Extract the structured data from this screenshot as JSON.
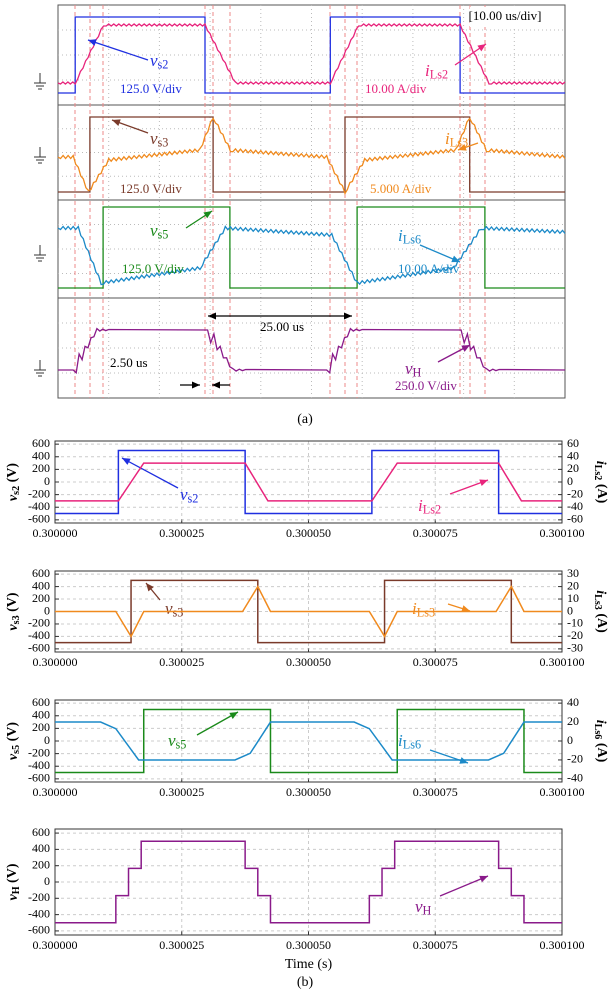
{
  "scope": {
    "labels": [
      "[10.00 us/div]",
      "vs2",
      "125.0 V/div",
      "iLs2",
      "10.00 A/div",
      "vs3",
      "iLs3",
      "125.0 V/div",
      "5.000 A/div",
      "vs5",
      "iLs6",
      "125.0 V/div",
      "10.00 A/div",
      "25.00 us",
      "2.50 us",
      "vH",
      "250.0 V/div"
    ]
  },
  "captions": [
    "(a)",
    "(b)"
  ],
  "chart_data": [
    {
      "type": "line",
      "ylabel": "vs2 (V)",
      "y2label": "iLs2 (A)",
      "grid": true,
      "xlim": [
        0.3,
        0.3001
      ],
      "xticks": [
        {
          "value": 0.3,
          "label": "0.300000"
        },
        {
          "value": 0.300025,
          "label": "0.300025"
        },
        {
          "value": 0.30005,
          "label": "0.300050"
        },
        {
          "value": 0.300075,
          "label": "0.300075"
        },
        {
          "value": 0.3001,
          "label": "0.300100"
        }
      ],
      "ylim": [
        -650,
        650
      ],
      "yticks": [
        -600,
        -400,
        -200,
        0,
        200,
        400,
        600
      ],
      "y2lim": [
        -65,
        65
      ],
      "y2ticks": [
        -60,
        -40,
        -20,
        0,
        20,
        40,
        60
      ],
      "series": [
        {
          "name": "vs2",
          "color": "#1f2fe0",
          "x": [
            0.3,
            0.3000125,
            0.3000125,
            0.3000375,
            0.3000375,
            0.3000625,
            0.3000625,
            0.3000875,
            0.3000875,
            0.3001
          ],
          "values": [
            -500,
            -500,
            500,
            500,
            -500,
            -500,
            500,
            500,
            -500,
            -500
          ]
        },
        {
          "name": "iLs2",
          "color": "#e8247c",
          "axis": "y2",
          "x": [
            0.3,
            0.3000125,
            0.3000175,
            0.3000375,
            0.300042,
            0.3000625,
            0.3000675,
            0.3000875,
            0.300092,
            0.3001
          ],
          "values": [
            -30,
            -30,
            30,
            30,
            -30,
            -30,
            30,
            30,
            -30,
            -30
          ]
        }
      ]
    },
    {
      "type": "line",
      "ylabel": "vs3 (V)",
      "y2label": "iLs3 (A)",
      "grid": true,
      "xlim": [
        0.3,
        0.3001
      ],
      "xticks": [
        {
          "value": 0.3,
          "label": "0.300000"
        },
        {
          "value": 0.300025,
          "label": "0.300025"
        },
        {
          "value": 0.30005,
          "label": "0.300050"
        },
        {
          "value": 0.300075,
          "label": "0.300075"
        },
        {
          "value": 0.3001,
          "label": "0.300100"
        }
      ],
      "ylim": [
        -650,
        650
      ],
      "yticks": [
        -600,
        -400,
        -200,
        0,
        200,
        400,
        600
      ],
      "y2lim": [
        -32.5,
        32.5
      ],
      "y2ticks": [
        -30,
        -20,
        -10,
        0,
        10,
        20,
        30
      ],
      "series": [
        {
          "name": "vs3",
          "color": "#7a3a2a",
          "x": [
            0.3,
            0.300015,
            0.300015,
            0.30004,
            0.30004,
            0.300065,
            0.300065,
            0.30009,
            0.30009,
            0.3001
          ],
          "values": [
            -500,
            -500,
            500,
            500,
            -500,
            -500,
            500,
            500,
            -500,
            -500
          ]
        },
        {
          "name": "iLs3",
          "color": "#f08a1e",
          "axis": "y2",
          "x": [
            0.3,
            0.300012,
            0.300015,
            0.3000175,
            0.300037,
            0.30004,
            0.3000425,
            0.300062,
            0.300065,
            0.3000675,
            0.300087,
            0.30009,
            0.3000925,
            0.3001
          ],
          "values": [
            0,
            0,
            -20,
            0,
            0,
            20,
            0,
            0,
            -20,
            0,
            0,
            20,
            0,
            0
          ]
        }
      ]
    },
    {
      "type": "line",
      "ylabel": "vs5 (V)",
      "y2label": "iLs6 (A)",
      "grid": true,
      "xlim": [
        0.3,
        0.3001
      ],
      "xticks": [
        {
          "value": 0.3,
          "label": "0.300000"
        },
        {
          "value": 0.300025,
          "label": "0.300025"
        },
        {
          "value": 0.30005,
          "label": "0.300050"
        },
        {
          "value": 0.300075,
          "label": "0.300075"
        },
        {
          "value": 0.3001,
          "label": "0.300100"
        }
      ],
      "ylim": [
        -650,
        650
      ],
      "yticks": [
        -600,
        -400,
        -200,
        0,
        200,
        400,
        600
      ],
      "y2lim": [
        -43.3,
        43.3
      ],
      "y2ticks": [
        -40,
        -20,
        0,
        20,
        40
      ],
      "series": [
        {
          "name": "vs5",
          "color": "#1a8a1a",
          "x": [
            0.3,
            0.3000175,
            0.3000175,
            0.3000425,
            0.3000425,
            0.3000675,
            0.3000675,
            0.3000925,
            0.3000925,
            0.3001
          ],
          "values": [
            -500,
            -500,
            500,
            500,
            -500,
            -500,
            500,
            500,
            -500,
            -500
          ]
        },
        {
          "name": "iLs6",
          "color": "#1c8ac8",
          "axis": "y2",
          "x": [
            0.3,
            0.300009,
            0.300012,
            0.3000165,
            0.3000355,
            0.3000385,
            0.3000425,
            0.300059,
            0.300062,
            0.3000665,
            0.3000855,
            0.3000885,
            0.3000925,
            0.3001
          ],
          "values": [
            20,
            20,
            13,
            -20,
            -20,
            -13,
            20,
            20,
            13,
            -20,
            -20,
            -13,
            20,
            20
          ]
        }
      ]
    },
    {
      "type": "line",
      "ylabel": "vH (V)",
      "xlabel": "Time (s)",
      "grid": true,
      "xlim": [
        0.3,
        0.3001
      ],
      "xticks": [
        {
          "value": 0.3,
          "label": "0.300000"
        },
        {
          "value": 0.300025,
          "label": "0.300025"
        },
        {
          "value": 0.30005,
          "label": "0.300050"
        },
        {
          "value": 0.300075,
          "label": "0.300075"
        },
        {
          "value": 0.3001,
          "label": "0.300100"
        }
      ],
      "ylim": [
        -650,
        650
      ],
      "yticks": [
        -600,
        -400,
        -200,
        0,
        200,
        400,
        600
      ],
      "series": [
        {
          "name": "vH",
          "color": "#8a1a8a",
          "x": [
            0.3,
            0.300012,
            0.300012,
            0.3000145,
            0.3000145,
            0.300017,
            0.300017,
            0.3000375,
            0.3000375,
            0.30004,
            0.30004,
            0.3000425,
            0.3000425,
            0.300062,
            0.300062,
            0.3000645,
            0.3000645,
            0.300067,
            0.300067,
            0.3000875,
            0.3000875,
            0.30009,
            0.30009,
            0.3000925,
            0.3000925,
            0.3001
          ],
          "values": [
            -500,
            -500,
            -167,
            -167,
            167,
            167,
            500,
            500,
            167,
            167,
            -167,
            -167,
            -500,
            -500,
            -167,
            -167,
            167,
            167,
            500,
            500,
            167,
            167,
            -167,
            -167,
            -500,
            -500
          ]
        }
      ]
    }
  ]
}
